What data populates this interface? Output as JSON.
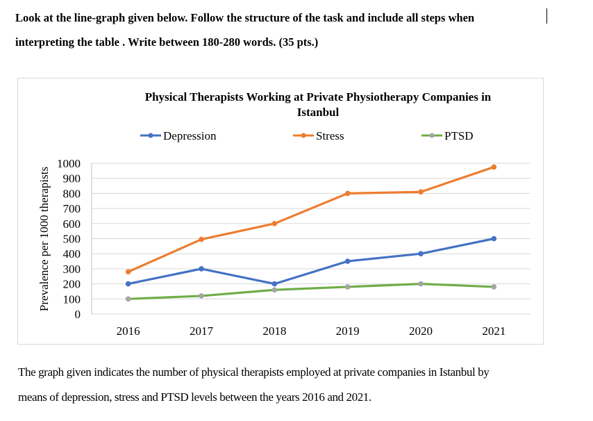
{
  "instructions": {
    "line1": "Look at the line-graph given below. Follow the structure of the task and include all steps when",
    "line2": "interpreting the table . Write between 180-280 words. (35 pts.)"
  },
  "caption": {
    "line1": "The graph given indicates the number of physical therapists employed at private companies in Istanbul by",
    "line2": "means of depression, stress and PTSD levels between the years 2016 and 2021."
  },
  "chart_data": {
    "type": "line",
    "title_line1": "Physical Therapists Working at Private Physiotherapy Companies in",
    "title_line2": "Istanbul",
    "ylabel": "Prevalence per 1000 therapists",
    "xlabel": "",
    "categories": [
      "2016",
      "2017",
      "2018",
      "2019",
      "2020",
      "2021"
    ],
    "ylim": [
      0,
      1000
    ],
    "yticks": [
      0,
      100,
      200,
      300,
      400,
      500,
      600,
      700,
      800,
      900,
      1000
    ],
    "grid": true,
    "legend_position": "top",
    "series": [
      {
        "name": "Depression",
        "color": "#4472C4",
        "values": [
          200,
          300,
          200,
          350,
          400,
          500
        ]
      },
      {
        "name": "Stress",
        "color": "#ED7D31",
        "values": [
          280,
          495,
          600,
          800,
          810,
          975
        ]
      },
      {
        "name": "PTSD",
        "color": "#70AD47",
        "marker_color": "#A5A5A5",
        "values": [
          100,
          120,
          160,
          180,
          200,
          180
        ]
      }
    ]
  }
}
